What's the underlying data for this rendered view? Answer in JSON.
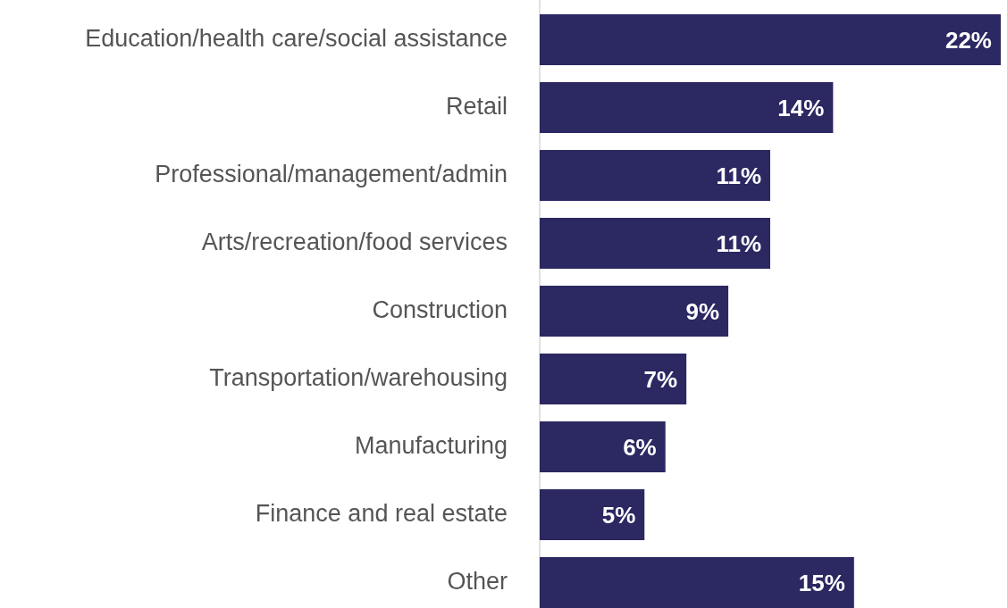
{
  "chart_data": {
    "type": "bar",
    "orientation": "horizontal",
    "categories": [
      "Education/health care/social assistance",
      "Retail",
      "Professional/management/admin",
      "Arts/recreation/food services",
      "Construction",
      "Transportation/warehousing",
      "Manufacturing",
      "Finance and real estate",
      "Other"
    ],
    "values": [
      22,
      14,
      11,
      11,
      9,
      7,
      6,
      5,
      15
    ],
    "value_labels": [
      "22%",
      "14%",
      "11%",
      "11%",
      "9%",
      "7%",
      "6%",
      "5%",
      "15%"
    ],
    "color": "#2b2862"
  }
}
